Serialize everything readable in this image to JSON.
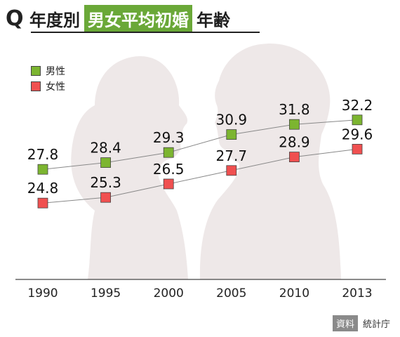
{
  "title": {
    "prefix_icon": "Q",
    "before": "年度別",
    "highlight": "男女平均初婚",
    "after": "年齢"
  },
  "source": {
    "tag": "資料",
    "text": "統計庁"
  },
  "colors": {
    "male": "#7cb530",
    "female": "#f05050",
    "highlight_bg": "#6aa838",
    "silhouette": "#eee8e8",
    "line": "#888888"
  },
  "chart_data": {
    "type": "line",
    "categories": [
      "1990",
      "1995",
      "2000",
      "2005",
      "2010",
      "2013"
    ],
    "series": [
      {
        "name": "男性",
        "values": [
          27.8,
          28.4,
          29.3,
          30.9,
          31.8,
          32.2
        ]
      },
      {
        "name": "女性",
        "values": [
          24.8,
          25.3,
          26.5,
          27.7,
          28.9,
          29.6
        ]
      }
    ],
    "xlabel": "",
    "ylabel": "",
    "ylim": [
      18,
      36
    ],
    "grid": false,
    "legend_placement": "top-left",
    "marker": "square",
    "data_labels": true
  }
}
